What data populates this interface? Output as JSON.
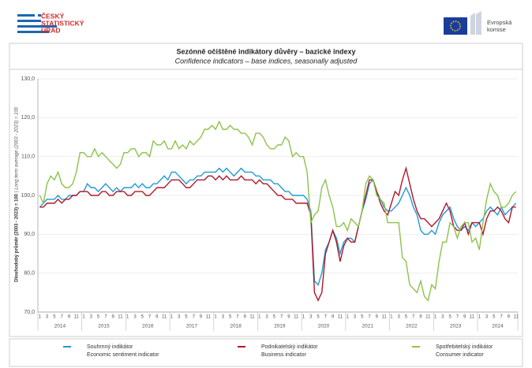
{
  "header": {
    "logo_lines": [
      "ČESKÝ",
      "STATISTICKÝ",
      "ÚŘAD"
    ],
    "eu_lines": [
      "Evropská",
      "komise"
    ]
  },
  "chart_data": {
    "type": "line",
    "title": "Sezónně očištěné indikátory důvěry – bazické indexy",
    "subtitle": "Confidence indicators – base indices, seasonally adjusted",
    "y_label": "Dlouhodobý průměr (2003 - 2023) = 100",
    "y_label_en": "| Long term average (2003 - 2023) = 100",
    "years": [
      "2014",
      "2015",
      "2016",
      "2017",
      "2018",
      "2019",
      "2020",
      "2021",
      "2022",
      "2023",
      "2024"
    ],
    "categories": [
      "1",
      null,
      "3",
      null,
      "5",
      null,
      "7",
      null,
      "9",
      null,
      "11",
      null,
      "1",
      null,
      "3",
      null,
      "5",
      null,
      "7",
      null,
      "9",
      null,
      "11",
      null,
      "1",
      null,
      "3",
      null,
      "5",
      null,
      "7",
      null,
      "9",
      null,
      "11",
      null,
      "1",
      null,
      "3",
      null,
      "5",
      null,
      "7",
      null,
      "9",
      null,
      "11",
      null,
      "1",
      null,
      "3",
      null,
      "5",
      null,
      "7",
      null,
      "9",
      null,
      "11",
      null,
      "1",
      null,
      "3",
      null,
      "5",
      null,
      "7",
      null,
      "9",
      null,
      "11",
      null,
      "1",
      null,
      "3",
      null,
      "5",
      null,
      "7",
      null,
      "9",
      null,
      "11",
      null,
      "1",
      null,
      "3",
      null,
      "5",
      null,
      "7",
      null,
      "9",
      null,
      "11",
      null,
      "1",
      null,
      "3",
      null,
      "5",
      null,
      "7",
      null,
      "9",
      null,
      "11",
      null,
      "1",
      null,
      "3",
      null,
      "5",
      null,
      "7",
      null,
      "9",
      null,
      "11",
      null,
      "1",
      null,
      "3",
      null,
      "5",
      null,
      "7",
      null,
      "9",
      null,
      "11"
    ],
    "ylim": [
      70,
      130
    ],
    "yticks": [
      {
        "value": 70,
        "label": "70,0"
      },
      {
        "value": 80,
        "label": "80,0"
      },
      {
        "value": 90,
        "label": "90,0"
      },
      {
        "value": 100,
        "label": "100,0"
      },
      {
        "value": 110,
        "label": "110,0"
      },
      {
        "value": 120,
        "label": "120,0"
      },
      {
        "value": 130,
        "label": "130,0"
      }
    ],
    "series": [
      {
        "name": "Souhrnný indikátor",
        "name_en": "Economic sentiment indicator",
        "color": "#1f9ad6",
        "values": [
          97,
          98,
          99,
          99,
          99,
          100,
          99,
          99,
          100,
          100,
          100,
          101,
          101,
          103,
          102,
          102,
          101,
          102,
          103,
          102,
          101,
          102,
          101,
          102,
          102,
          102,
          103,
          102,
          103,
          102,
          102,
          103,
          103,
          104,
          105,
          104,
          106,
          106,
          105,
          104,
          103,
          104,
          104,
          105,
          105,
          106,
          106,
          106,
          106,
          107,
          106,
          107,
          106,
          105,
          106,
          107,
          106,
          106,
          106,
          105,
          105,
          104,
          104,
          104,
          103,
          103,
          102,
          101,
          101,
          100,
          100,
          100,
          100,
          99,
          96,
          78,
          77,
          80,
          86,
          88,
          91,
          89,
          85,
          88,
          89,
          89,
          88,
          92,
          96,
          99,
          103,
          104,
          101,
          99,
          97,
          96,
          96,
          97,
          98,
          100,
          102,
          100,
          97,
          95,
          91,
          90,
          90,
          91,
          90,
          93,
          95,
          96,
          97,
          94,
          92,
          91,
          92,
          91,
          93,
          92,
          93,
          94,
          96,
          97,
          96,
          95,
          97,
          95,
          96,
          97,
          98
        ]
      },
      {
        "name": "Podnikatelský indikátor",
        "name_en": "Business indicator",
        "color": "#b0182a",
        "values": [
          97,
          97,
          98,
          98,
          98,
          99,
          98,
          99,
          99,
          100,
          100,
          101,
          101,
          101,
          100,
          100,
          100,
          101,
          101,
          100,
          100,
          101,
          101,
          101,
          100,
          100,
          101,
          101,
          101,
          100,
          100,
          101,
          102,
          102,
          102,
          103,
          104,
          104,
          104,
          103,
          102,
          102,
          103,
          104,
          104,
          104,
          105,
          105,
          104,
          105,
          104,
          105,
          104,
          104,
          104,
          105,
          104,
          104,
          104,
          103,
          104,
          103,
          103,
          102,
          101,
          100,
          100,
          99,
          99,
          99,
          98,
          98,
          98,
          98,
          95,
          75,
          73,
          75,
          85,
          88,
          91,
          88,
          83,
          87,
          89,
          88,
          88,
          92,
          96,
          100,
          104,
          104,
          101,
          98,
          96,
          95,
          98,
          101,
          100,
          104,
          107,
          103,
          99,
          96,
          94,
          94,
          93,
          92,
          93,
          94,
          96,
          98,
          96,
          92,
          91,
          91,
          93,
          90,
          93,
          93,
          93,
          90,
          94,
          96,
          96,
          97,
          96,
          94,
          93,
          97,
          97
        ]
      },
      {
        "name": "Spotřebitelský indikátor",
        "name_en": "Consumer indicator",
        "color": "#8cc34a",
        "values": [
          100,
          98,
          103,
          105,
          104,
          106,
          103,
          102,
          102,
          103,
          106,
          111,
          111,
          110,
          110,
          112,
          110,
          111,
          110,
          109,
          108,
          107,
          108,
          111,
          111,
          112,
          112,
          110,
          111,
          111,
          110,
          114,
          113,
          113,
          114,
          112,
          112,
          114,
          112,
          113,
          112,
          114,
          113,
          114,
          115,
          117,
          117,
          118,
          117,
          119,
          117,
          117,
          118,
          117,
          117,
          116,
          116,
          115,
          113,
          116,
          116,
          115,
          113,
          112,
          112,
          113,
          113,
          115,
          114,
          110,
          111,
          110,
          110,
          106,
          93,
          95,
          96,
          102,
          104,
          100,
          97,
          92,
          92,
          93,
          91,
          94,
          93,
          92,
          96,
          103,
          105,
          104,
          100,
          99,
          98,
          93,
          93,
          93,
          93,
          84,
          83,
          77,
          76,
          75,
          78,
          74,
          73,
          77,
          76,
          83,
          88,
          88,
          93,
          92,
          89,
          92,
          93,
          93,
          88,
          89,
          86,
          93,
          99,
          103,
          101,
          100,
          97,
          97,
          98,
          100,
          101
        ]
      }
    ]
  }
}
